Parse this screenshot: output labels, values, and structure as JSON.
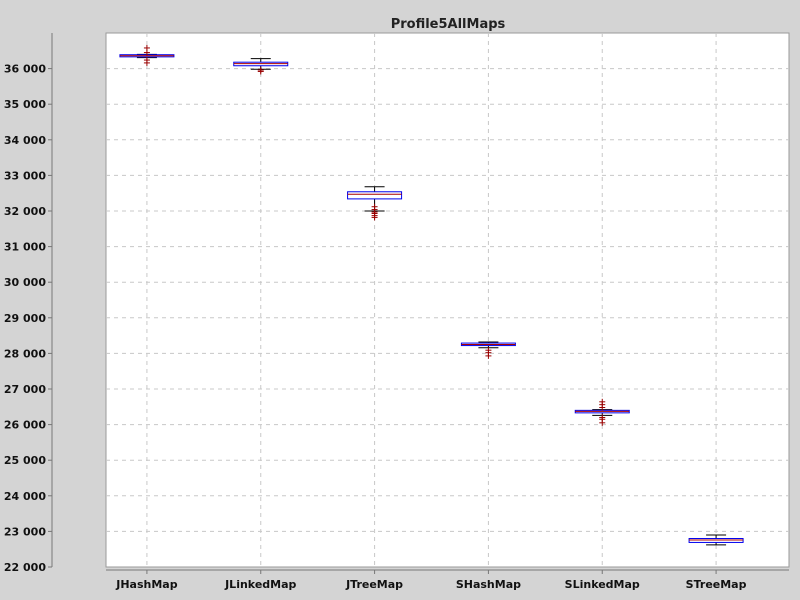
{
  "chart_data": {
    "type": "box",
    "title": "Profile5AllMaps",
    "xlabel": "",
    "ylabel": "",
    "ylim": [
      22000,
      37000
    ],
    "y_ticks": [
      22000,
      23000,
      24000,
      25000,
      26000,
      27000,
      28000,
      29000,
      30000,
      31000,
      32000,
      33000,
      34000,
      35000,
      36000
    ],
    "y_tick_labels": [
      "22 000",
      "23 000",
      "24 000",
      "25 000",
      "26 000",
      "27 000",
      "28 000",
      "29 000",
      "30 000",
      "31 000",
      "32 000",
      "33 000",
      "34 000",
      "35 000",
      "36 000"
    ],
    "grid": true,
    "categories": [
      "JHashMap",
      "JLinkedMap",
      "JTreeMap",
      "SHashMap",
      "SLinkedMap",
      "STreeMap"
    ],
    "boxes": [
      {
        "category": "JHashMap",
        "whisker_low": 36310,
        "q1": 36330,
        "median": 36360,
        "q3": 36390,
        "whisker_high": 36400,
        "outliers": [
          36160,
          36240,
          36450,
          36580
        ]
      },
      {
        "category": "JLinkedMap",
        "whisker_low": 35980,
        "q1": 36080,
        "median": 36140,
        "q3": 36180,
        "whisker_high": 36280,
        "outliers": [
          35920,
          35960
        ]
      },
      {
        "category": "JTreeMap",
        "whisker_low": 32000,
        "q1": 32340,
        "median": 32470,
        "q3": 32540,
        "whisker_high": 32680,
        "outliers": [
          31820,
          31870,
          31930,
          31970,
          32040,
          32120
        ]
      },
      {
        "category": "SHashMap",
        "whisker_low": 28160,
        "q1": 28220,
        "median": 28250,
        "q3": 28290,
        "whisker_high": 28320,
        "outliers": [
          27930,
          28020,
          28090
        ]
      },
      {
        "category": "SLinkedMap",
        "whisker_low": 26260,
        "q1": 26330,
        "median": 26370,
        "q3": 26400,
        "whisker_high": 26420,
        "outliers": [
          26050,
          26150,
          26200,
          26480,
          26560,
          26640
        ]
      },
      {
        "category": "STreeMap",
        "whisker_low": 22620,
        "q1": 22690,
        "median": 22760,
        "q3": 22800,
        "whisker_high": 22900,
        "outliers": []
      }
    ],
    "colors": {
      "box_border": "#0000ee",
      "median": "#aa0000",
      "whisker": "#000000",
      "outlier": "#990000",
      "plot_background": "#ffffff",
      "page_background": "#d4d4d4",
      "grid": "#c8c8c8"
    }
  }
}
